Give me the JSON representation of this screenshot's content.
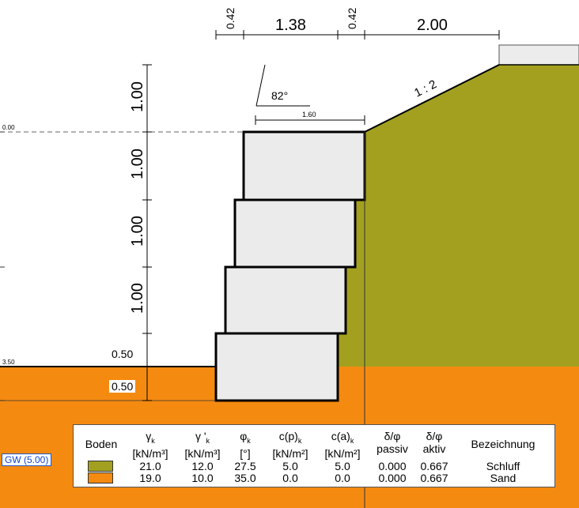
{
  "top_dimensions": [
    "0.42",
    "1.38",
    "0.42",
    "2.00"
  ],
  "left_dimensions": [
    "1.00",
    "1.00",
    "1.00",
    "1.00"
  ],
  "base_dims": [
    "0.50",
    "0.50"
  ],
  "angle_label": "82°",
  "crest_width": "1.60",
  "slope_label": "1 : 2",
  "level_labels": [
    "0.00",
    "3.50"
  ],
  "groundwater_label": "GW (5.00)",
  "soil_table": {
    "headers": {
      "boden": "Boden",
      "gamma": "γ",
      "gamma_sub": "k",
      "gamma_unit": "[kN/m³]",
      "gamma_prime": "γ '",
      "gamma_prime_sub": "k",
      "gamma_prime_unit": "[kN/m³]",
      "phi": "φ",
      "phi_sub": "k",
      "phi_unit": "[°]",
      "cp": "c(p)",
      "cp_sub": "k",
      "cp_unit": "[kN/m²]",
      "ca": "c(a)",
      "ca_sub": "k",
      "ca_unit": "[kN/m²]",
      "dp": "δ/φ",
      "dp_unit": "passiv",
      "da": "δ/φ",
      "da_unit": "aktiv",
      "bez": "Bezeichnung"
    },
    "rows": [
      {
        "color": "#a3a020",
        "gamma": "21.0",
        "gamma_prime": "12.0",
        "phi": "27.5",
        "cp": "5.0",
        "ca": "5.0",
        "dp": "0.000",
        "da": "0.667",
        "name": "Schluff"
      },
      {
        "color": "#f58a10",
        "gamma": "19.0",
        "gamma_prime": "10.0",
        "phi": "35.0",
        "cp": "0.0",
        "ca": "0.0",
        "dp": "0.000",
        "da": "0.667",
        "name": "Sand"
      }
    ]
  },
  "colors": {
    "silt": "#a3a020",
    "sand": "#f58a10",
    "block": "#ebebeb",
    "outline": "#000000"
  }
}
